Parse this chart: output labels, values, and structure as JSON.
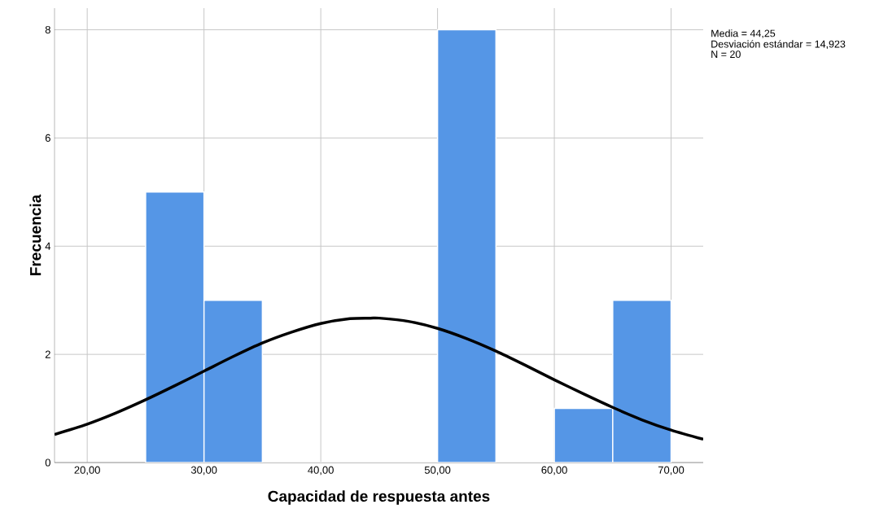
{
  "chart_data": {
    "type": "histogram",
    "xlabel": "Capacidad de respuesta antes",
    "ylabel": "Frecuencia",
    "bins": [
      25,
      30,
      35,
      40,
      45,
      50,
      55,
      60,
      65,
      70
    ],
    "values": [
      5,
      3,
      0,
      0,
      0,
      8,
      0,
      1,
      3
    ],
    "color": "#5596e6",
    "series": [
      {
        "type": "line",
        "color": "#000000",
        "x": [
          17.2,
          20,
          22.5,
          25,
          27.5,
          30,
          32.5,
          35,
          37.5,
          40,
          42.5,
          44.25,
          45,
          47.5,
          50,
          52.5,
          55,
          57.5,
          60,
          62.5,
          65,
          67.5,
          70,
          72.75
        ],
        "values": [
          0.52,
          0.71,
          0.92,
          1.16,
          1.42,
          1.69,
          1.96,
          2.21,
          2.41,
          2.57,
          2.66,
          2.67,
          2.67,
          2.61,
          2.48,
          2.29,
          2.06,
          1.8,
          1.53,
          1.27,
          1.02,
          0.79,
          0.6,
          0.43
        ]
      }
    ],
    "xlim": [
      17.2,
      72.75
    ],
    "ylim": [
      0,
      8.4
    ],
    "xticks": [
      {
        "value": 20,
        "label": "20,00"
      },
      {
        "value": 30,
        "label": "30,00"
      },
      {
        "value": 40,
        "label": "40,00"
      },
      {
        "value": 50,
        "label": "50,00"
      },
      {
        "value": 60,
        "label": "60,00"
      },
      {
        "value": 70,
        "label": "70,00"
      }
    ],
    "yticks": [
      0,
      2,
      4,
      6,
      8
    ],
    "grid": true,
    "annotations": [
      "Media = 44,25",
      "Desviación estándar = 14,923",
      "N = 20"
    ]
  }
}
